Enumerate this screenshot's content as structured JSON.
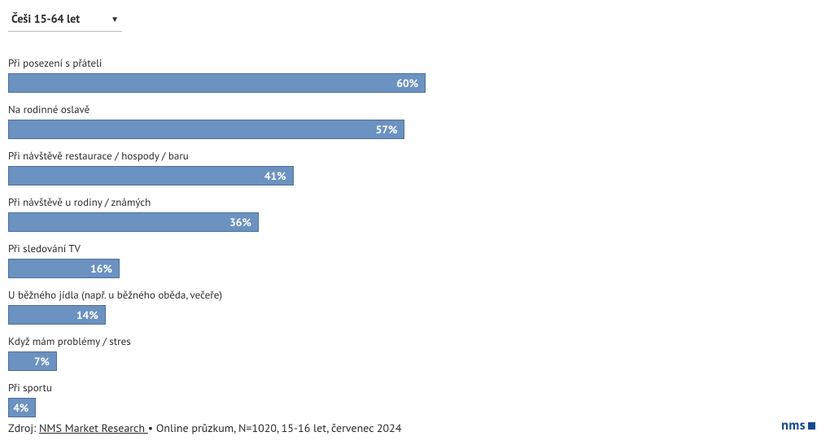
{
  "dropdown": {
    "label": "Češi 15-64 let",
    "caret": "▼"
  },
  "chart": {
    "type": "bar",
    "max_value": 100,
    "min_bar_pct": 3.5,
    "bar_bg": "#6b92c0",
    "bar_border": "#4f6f99",
    "value_color": "#ffffff",
    "value_fontsize": 13.5,
    "label_fontsize": 13,
    "rows": [
      {
        "label": "Při posezení s přáteli",
        "value": 60,
        "display": "60%"
      },
      {
        "label": "Na rodinné oslavě",
        "value": 57,
        "display": "57%"
      },
      {
        "label": "Při návštěvě restaurace / hospody / baru",
        "value": 41,
        "display": "41%"
      },
      {
        "label": "Při návštěvě u rodiny / známých",
        "value": 36,
        "display": "36%"
      },
      {
        "label": "Při sledování TV",
        "value": 16,
        "display": "16%"
      },
      {
        "label": "U běžného jídla (např. u běžného oběda, večeře)",
        "value": 14,
        "display": "14%"
      },
      {
        "label": "Když mám problémy / stres",
        "value": 7,
        "display": "7%"
      },
      {
        "label": "Při sportu",
        "value": 4,
        "display": "4%"
      }
    ]
  },
  "footer": {
    "prefix": "Zdroj: ",
    "link_text": "NMS Market Research ",
    "suffix": "• Online průzkum, N=1020, 15-16 let, červenec 2024"
  },
  "logo": {
    "text": "nms",
    "text_color": "#134a8e",
    "square_color": "#134a8e"
  }
}
